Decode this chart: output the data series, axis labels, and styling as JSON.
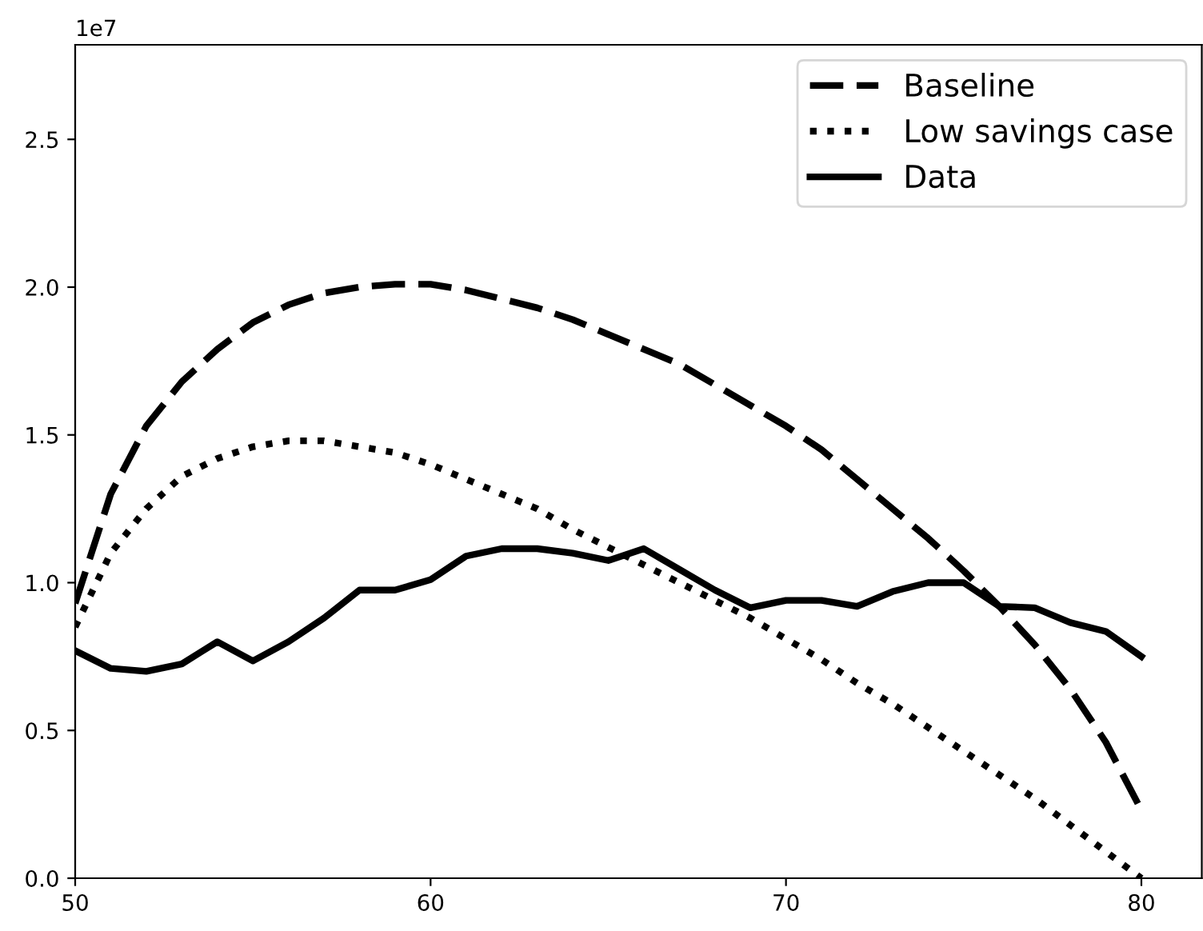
{
  "chart_data": {
    "type": "line",
    "x": [
      50,
      51,
      52,
      53,
      54,
      55,
      56,
      57,
      58,
      59,
      60,
      61,
      62,
      63,
      64,
      65,
      66,
      67,
      68,
      69,
      70,
      71,
      72,
      73,
      74,
      75,
      76,
      77,
      78,
      79,
      80
    ],
    "series": [
      {
        "name": "Baseline",
        "color": "#000000",
        "line_style": "dashed",
        "values": [
          0.93,
          1.3,
          1.53,
          1.68,
          1.79,
          1.88,
          1.94,
          1.98,
          2.0,
          2.01,
          2.01,
          1.99,
          1.96,
          1.93,
          1.89,
          1.84,
          1.79,
          1.74,
          1.67,
          1.6,
          1.53,
          1.45,
          1.35,
          1.25,
          1.15,
          1.04,
          0.92,
          0.79,
          0.64,
          0.46,
          0.23
        ]
      },
      {
        "name": "Low savings case",
        "color": "#000000",
        "line_style": "dotted",
        "values": [
          0.85,
          1.1,
          1.25,
          1.36,
          1.42,
          1.46,
          1.48,
          1.48,
          1.46,
          1.44,
          1.4,
          1.35,
          1.3,
          1.25,
          1.18,
          1.12,
          1.06,
          1.0,
          0.94,
          0.88,
          0.81,
          0.74,
          0.66,
          0.59,
          0.51,
          0.43,
          0.35,
          0.27,
          0.18,
          0.09,
          0.0
        ]
      },
      {
        "name": "Data",
        "color": "#000000",
        "line_style": "solid",
        "values": [
          0.77,
          0.71,
          0.7,
          0.725,
          0.8,
          0.735,
          0.8,
          0.88,
          0.975,
          0.975,
          1.01,
          1.09,
          1.115,
          1.115,
          1.1,
          1.075,
          1.115,
          1.045,
          0.975,
          0.915,
          0.94,
          0.94,
          0.92,
          0.97,
          1.0,
          1.0,
          0.92,
          0.915,
          0.865,
          0.835,
          0.75
        ]
      }
    ],
    "xlim": [
      50,
      81.7
    ],
    "xticks": [
      50,
      60,
      70,
      80
    ],
    "ylim": [
      0,
      2.82
    ],
    "yticks": [
      {
        "value": 0,
        "label": "0.0"
      },
      0.5,
      {
        "value": 1,
        "label": "1.0"
      },
      1.5,
      {
        "value": 2,
        "label": "2.0"
      },
      2.5
    ],
    "annotations": [
      "1e7"
    ],
    "legend": "top right",
    "grid": false,
    "marker": "none"
  }
}
